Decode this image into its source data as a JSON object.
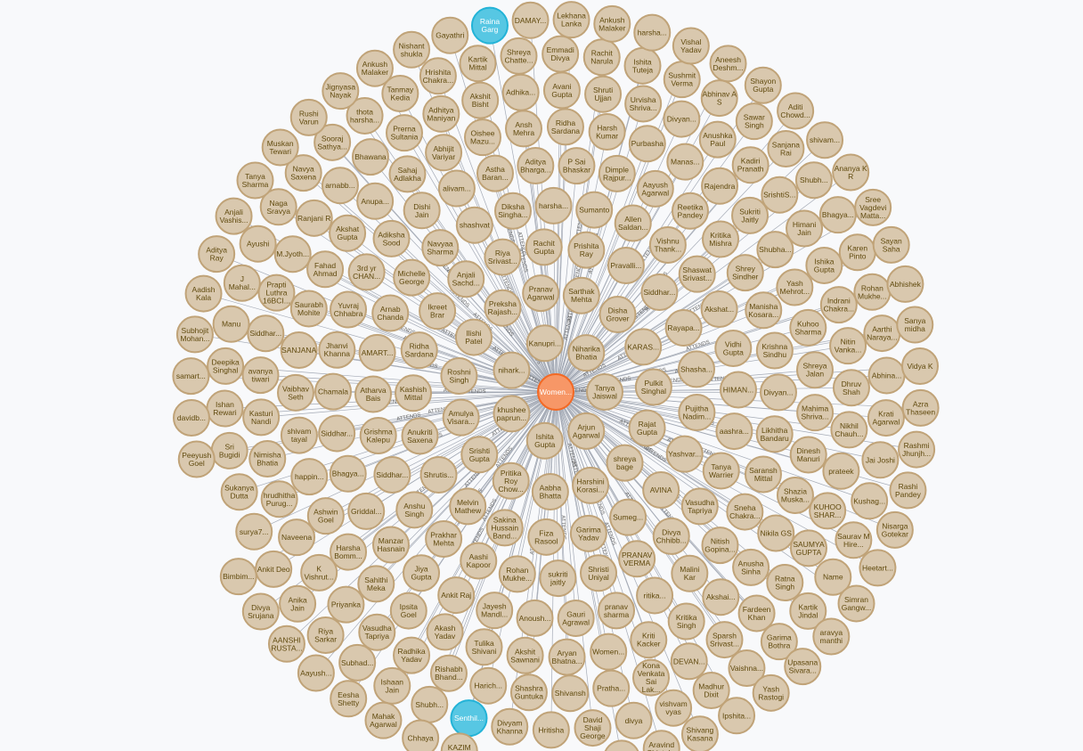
{
  "graph": {
    "colors": {
      "person_fill": "#d9c8ae",
      "person_stroke": "#c0a378",
      "person_text": "#604a0e",
      "event_fill": "#f79767",
      "event_stroke": "#f36924",
      "event_text": "#ffffff",
      "highlight_fill": "#57c7e3",
      "highlight_stroke": "#23b3d7",
      "highlight_text": "#ffffff",
      "edge": "#a5abb6",
      "background": "#f8f9fb"
    },
    "relationship": "ATTENDS",
    "center": "Women...",
    "highlighted": [
      "Senthil...",
      "Raina Garg"
    ],
    "nodes": [
      "Tanya Jaiswal",
      "Arjun Agarwal",
      "Ishita Gupta",
      "khushee paprun...",
      "nihark...",
      "Kanupri...",
      "Niharika Bhatia",
      "Rajat Gupta",
      "shreya bage",
      "Harshini Korasi...",
      "Aabha Bhatta",
      "Pritika Roy Chow...",
      "Srishti Gupta",
      "Amulya Visara...",
      "Roshni Singh",
      "Ilishi Patel",
      "Preksha Rajash...",
      "Pranav Agarwal",
      "Sarthak Mehta",
      "Disha Grover",
      "KARAS...",
      "Pulkit Singhal",
      "AVINA",
      "Sumeg...",
      "Garima Yadav",
      "Fiza Rasool",
      "Sakina Hussain Band...",
      "Melvin Mathew",
      "Shrutis...",
      "Anukriti Saxena",
      "Kashish Mittal",
      "Ridha Sardana",
      "Ikreet Brar",
      "Anjali Sachd...",
      "Riya Srivast...",
      "Rachit Gupta",
      "Prishita Ray",
      "Pravalli...",
      "Siddhar...",
      "Rayapa...",
      "Shasha...",
      "Pujitha Nadim...",
      "Yashvar...",
      "PRANAV VERMA",
      "Shristi Uniyal",
      "sukriti jaitly",
      "Rohan Mukhe...",
      "Aashi Kapoor",
      "Prakhar Mehta",
      "Anshu Singh",
      "Siddhar...",
      "Grishma Kalepu",
      "Atharva Bais",
      "AMART...",
      "Arnab Chanda",
      "Michelle George",
      "Navyaa Sharma",
      "shashvat",
      "Diksha Singha...",
      "harsha...",
      "Sumanto",
      "Allen Saldan...",
      "Vishnu Thank...",
      "Shaswat Srivast...",
      "Akshat...",
      "Vidhi Gupta",
      "HIMAN...",
      "aashra...",
      "Tanya Warrier",
      "Vasudha Tapriya",
      "Divya Chhibb...",
      "Gauri Agrawal",
      "Anoush...",
      "Jayesh Mandl...",
      "Ankit Raj",
      "Jiya Gupta",
      "Manzar Hasnain",
      "Griddal...",
      "Bhagya...",
      "Siddhar...",
      "Chamala",
      "Jhanvi Khanna",
      "Yuvraj Chhabra",
      "3rd yr CHAN...",
      "Adiksha Sood",
      "Dishi Jain",
      "alivam...",
      "Astha Baran...",
      "Aditya Bharga...",
      "P Sai Bhaskar",
      "Dimple Rajpur...",
      "Aayush Agarwal",
      "Reetika Pandey",
      "Kritika Mishra",
      "Shrey Sindher",
      "Manisha Kosara...",
      "Krishna Sindhu",
      "Divyan...",
      "Likhitha Bandaru",
      "Saransh Mittal",
      "Sneha Chakra...",
      "Nitish Gopina...",
      "Malini Kar",
      "ritika...",
      "pranav sharma",
      "Tulika Shivani",
      "Akash Yadav",
      "Ipsita Goel",
      "Sahithi Meka",
      "Harsha Bomm...",
      "Ashwin Goel",
      "happin...",
      "shivam tayal",
      "Vaibhav Seth",
      "SANJANA",
      "Saurabh Mohite",
      "Fahad Ahmad",
      "Akshat Gupta",
      "Anupa...",
      "Sahaj Adlakha",
      "Abhijit Variyar",
      "Oishee Mazu...",
      "Ansh Mehra",
      "Ridha Sardana",
      "Harsh Kumar",
      "Purbasha",
      "Manas...",
      "Rajendra",
      "Sukriti Jaitly",
      "Shubha...",
      "Yash Mehrot...",
      "Kuhoo Sharma",
      "Shreya Jalan",
      "Mahima Shriva...",
      "Dinesh Manuri",
      "Shazia Muska...",
      "Nikila GS",
      "Anusha Sinha",
      "Akshai...",
      "Kritika Singh",
      "Kriti Kacker",
      "Women...",
      "Aryan Bhatna...",
      "Akshit Sawnani",
      "Vasudha Tapriya",
      "Priyanka",
      "K Vishrut...",
      "Naveena",
      "hrudhitha Purug...",
      "Nimisha Bhatia",
      "Kasturi Nandi",
      "avanya tiwari",
      "Siddhar...",
      "Prapti Luthra 16BCI...",
      "M.Jyoth...",
      "Ranjani R",
      "arnabb...",
      "Bhawana",
      "Prerna Sultania",
      "Adhitya Maniyan",
      "Akshit Bisht",
      "Adhika...",
      "Avani Gupta",
      "Shruti Ujjan",
      "Urvisha Shriva...",
      "Divyan...",
      "Anushka Paul",
      "Kadiri Pranath",
      "SrishtiS...",
      "Himani Jain",
      "Ishika Gupta",
      "Indrani Chakra...",
      "Nitin Vanka...",
      "Dhruv Shah",
      "Nikhil Chauh...",
      "prateek",
      "KUHOO SHAR...",
      "SAUMYA GUPTA",
      "Ratna Singh",
      "Fardeen Khan",
      "Sparsh Srivast...",
      "DEVAN...",
      "Kona Venkata Sai Lak...",
      "Pratha...",
      "Shivansh",
      "Shashra Guntuka",
      "Harich...",
      "Rishabh Bhand...",
      "Radhika Yadav",
      "Ankit Deo",
      "surya7...",
      "Sukanya Dutta",
      "Sri Bugidi",
      "Ishan Rewari",
      "Deepika Singhal",
      "Manu",
      "J Mahal...",
      "Ayushi",
      "Naga Sravya",
      "Navya Saxena",
      "Sooraj Sathya...",
      "thota harsha...",
      "Tanmay Kedia",
      "Hrishita Chakra...",
      "Kartik Mittal",
      "Shreya Chatte...",
      "Emmadi Divya",
      "Rachit Narula",
      "Ishita Tuteja",
      "Sushmit Verma",
      "Abhinav A S",
      "Sawar Singh",
      "Sanjana Rai",
      "Shubh...",
      "Bhagya...",
      "Karen Pinto",
      "Rohan Mukhe...",
      "Aarthi Naraya...",
      "Abhina...",
      "Krati Agarwal",
      "Jai Joshi",
      "Kushag...",
      "Saurav M Hire...",
      "Name",
      "Kartik Jindal",
      "Garima Bothra",
      "Vaishna...",
      "Madhur Dixit",
      "vishvam vyas",
      "divya",
      "David Shaji George",
      "Hritisha",
      "Divyam Khanna",
      "Senthil...",
      "Shubh...",
      "Ishaan Jain",
      "Subhad...",
      "Riya Sarkar",
      "Anika Jain",
      "Peeyush Goel",
      "davidb...",
      "samart...",
      "Subhojit Mohan...",
      "Aadish Kala",
      "Aditya Ray",
      "Anjali Vashis...",
      "Tanya Sharma",
      "Muskan Tewari",
      "Rushi Varun",
      "Jignyasa Nayak",
      "Ankush Malaker",
      "Nishant shukla",
      "Gayathri",
      "Raina Garg",
      "DAMAY...",
      "Lekhana Lanka",
      "Ankush Malaker",
      "harsha...",
      "Vishal Yadav",
      "Aneesh Deshm...",
      "Shayon Gupta",
      "Aditi Chowd...",
      "shivam...",
      "Ananya K R",
      "Sree Vagdevi Matta...",
      "Sayan Saha",
      "Abhishek",
      "Sanya midha",
      "Vidya K",
      "Azra Thaseen",
      "Rashmi Jhunjh...",
      "Rashi Pandey",
      "Nisarga Gotekar",
      "Heetart...",
      "Simran Gangw...",
      "aravya manthi",
      "Upasana Sivara...",
      "Yash Rastogi",
      "Ipshita...",
      "Shivang Kasana",
      "Aravind Chintal...",
      "Shreya Rana",
      "KAZIM RIZVI",
      "Chhaya",
      "Mahak Agarwal",
      "Eesha Shetty",
      "Aayush...",
      "AANSHI RUSTA...",
      "Divya Srujana",
      "Bimbim..."
    ]
  }
}
